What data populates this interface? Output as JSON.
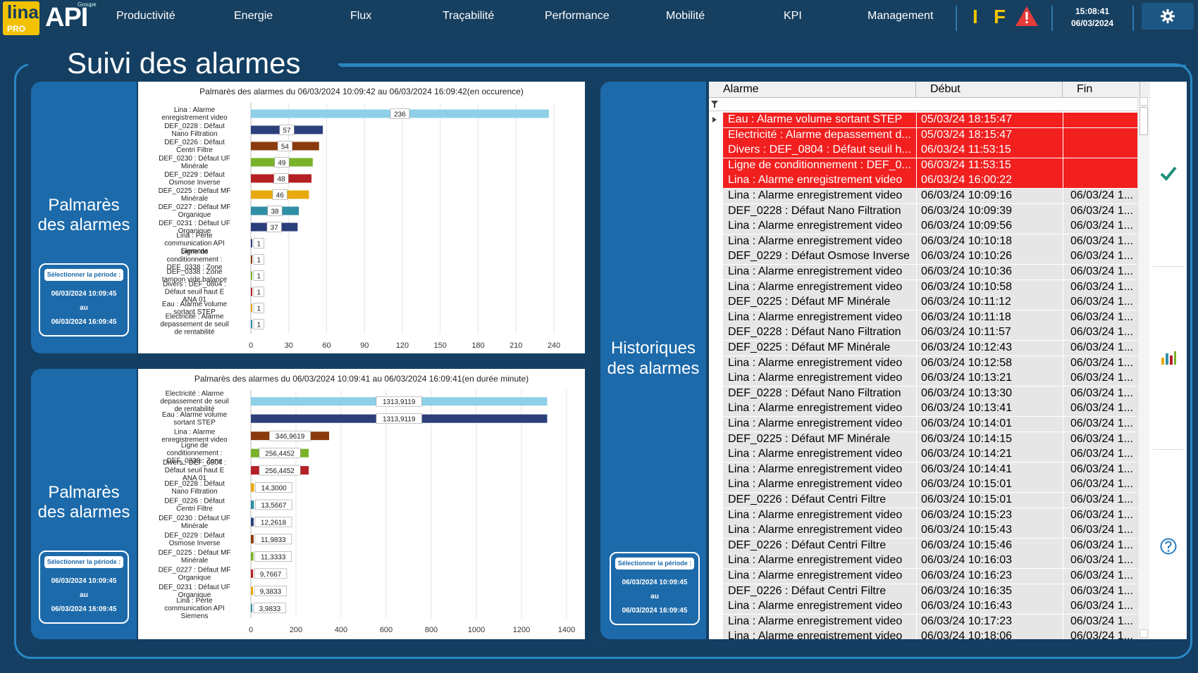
{
  "brand": {
    "lina": "lina",
    "pro": "PRO",
    "groupe": "Groupe",
    "api": "API"
  },
  "nav": [
    "Productivité",
    "Energie",
    "Flux",
    "Traçabilité",
    "Performance",
    "Mobilité",
    "KPI",
    "Management"
  ],
  "status": {
    "i": "I",
    "f": "F"
  },
  "clock": {
    "time": "15:08:41",
    "date": "06/03/2024"
  },
  "page_title": "Suivi des alarmes",
  "panels": {
    "top_label_1": "Palmarès",
    "top_label_2": "des alarmes",
    "bottom_label_1": "Palmarès",
    "bottom_label_2": "des alarmes",
    "hist_label_1": "Historiques",
    "hist_label_2": "des alarmes"
  },
  "period_top": {
    "btn": "Sélectionner la période :",
    "from": "06/03/2024 10:09:45",
    "au": "au",
    "to": "06/03/2024 16:09:45"
  },
  "period_bottom": {
    "btn": "Sélectionner la période :",
    "from": "06/03/2024 10:09:45",
    "au": "au",
    "to": "06/03/2024 16:09:45"
  },
  "period_hist": {
    "btn": "Sélectionner la période :",
    "from": "06/03/2024 10:09:45",
    "au": "au",
    "to": "06/03/2024 16:09:45"
  },
  "chart_data": [
    {
      "type": "bar",
      "title": "Palmarès des alarmes du 06/03/2024 10:09:42 au 06/03/2024 16:09:42(en occurence)",
      "categories": [
        "Lina : Alarme enregistrement video",
        "DEF_0228 : Défaut Nano Filtration",
        "DEF_0226 : Défaut Centri Filtre",
        "DEF_0230 : Défaut UF Minérale",
        "DEF_0229 : Défaut Osmose Inverse",
        "DEF_0225 : Défaut MF Minérale",
        "DEF_0227 : Défaut MF Organique",
        "DEF_0231 : Défaut UF Organique",
        "Lina : Perte communication API Siemens",
        "Ligne de conditionnement : DEF_0338 : Zone tampon vide balance",
        "DEF_0338 : Zone tampon vide balance",
        "Divers : DEF_0804 : Défaut seuil haut E ANA 01",
        "Eau : Alarme volume sortant STEP",
        "Electricité : Alarme depassement de seuil de rentabilité"
      ],
      "values": [
        236,
        57,
        54,
        49,
        48,
        46,
        38,
        37,
        1,
        1,
        1,
        1,
        1,
        1
      ],
      "value_labels": [
        "236",
        "57",
        "54",
        "49",
        "48",
        "46",
        "38",
        "37",
        "1",
        "1",
        "1",
        "1",
        "1",
        "1"
      ],
      "colors": [
        "#8ed0e8",
        "#2b3f7a",
        "#8b3a0e",
        "#79b32a",
        "#b52025",
        "#e8a90e",
        "#2f8fa6",
        "#2b3f7a",
        "#2b3f7a",
        "#8b3a0e",
        "#79b32a",
        "#b52025",
        "#e8a90e",
        "#2f8fa6"
      ],
      "ticks": [
        "0",
        "30",
        "60",
        "90",
        "120",
        "150",
        "180",
        "210",
        "240"
      ],
      "xlim": [
        0,
        240
      ]
    },
    {
      "type": "bar",
      "title": "Palmarès des alarmes du 06/03/2024 10:09:41 au 06/03/2024 16:09:41(en durée minute)",
      "categories": [
        "Electricité : Alarme depassement de seuil de rentabilité",
        "Eau : Alarme volume sortant STEP",
        "Lina : Alarme enregistrement video",
        "Ligne de conditionnement : DEF_0338 : Zone tampon vide balance",
        "Divers : DEF_0804 : Défaut seuil haut E ANA 01",
        "DEF_0228 : Défaut Nano Filtration",
        "DEF_0226 : Défaut Centri Filtre",
        "DEF_0230 : Défaut UF Minérale",
        "DEF_0229 : Défaut Osmose Inverse",
        "DEF_0225 : Défaut MF Minérale",
        "DEF_0227 : Défaut MF Organique",
        "DEF_0231 : Défaut UF Organique",
        "Lina : Perte communication API Siemens"
      ],
      "values": [
        1313.9119,
        1313.9119,
        346.9619,
        256.4452,
        256.4452,
        14.3,
        13.5667,
        12.2618,
        11.9833,
        11.3333,
        9.7667,
        9.3833,
        3.9833
      ],
      "value_labels": [
        "1313,9119",
        "1313,9119",
        "346,9619",
        "256,4452",
        "256,4452",
        "14,3000",
        "13,5667",
        "12,2618",
        "11,9833",
        "11,3333",
        "9,7667",
        "9,3833",
        "3,9833"
      ],
      "colors": [
        "#8ed0e8",
        "#2b3f7a",
        "#8b3a0e",
        "#79b32a",
        "#b52025",
        "#e8a90e",
        "#2f8fa6",
        "#2b3f7a",
        "#8b3a0e",
        "#79b32a",
        "#b52025",
        "#e8a90e",
        "#2f8fa6"
      ],
      "ticks": [
        "0",
        "200",
        "400",
        "600",
        "800",
        "1000",
        "1200",
        "1400"
      ],
      "xlim": [
        0,
        1400
      ]
    }
  ],
  "table": {
    "headers": [
      "Alarme",
      "Début",
      "Fin"
    ],
    "rows": [
      [
        "Eau : Alarme volume sortant STEP",
        "05/03/24 18:15:47",
        "",
        "red"
      ],
      [
        "Electricité : Alarme depassement d...",
        "05/03/24 18:15:47",
        "",
        "red"
      ],
      [
        "Divers : DEF_0804 : Défaut seuil h...",
        "06/03/24 11:53:15",
        "",
        "red"
      ],
      [
        "Ligne de conditionnement : DEF_0...",
        "06/03/24 11:53:15",
        "",
        "red"
      ],
      [
        "Lina : Alarme enregistrement video",
        "06/03/24 16:00:22",
        "",
        "red"
      ],
      [
        "Lina : Alarme enregistrement video",
        "06/03/24 10:09:16",
        "06/03/24 1...",
        "gray"
      ],
      [
        "DEF_0228 : Défaut Nano Filtration",
        "06/03/24 10:09:39",
        "06/03/24 1...",
        "gray"
      ],
      [
        "Lina : Alarme enregistrement video",
        "06/03/24 10:09:56",
        "06/03/24 1...",
        "gray"
      ],
      [
        "Lina : Alarme enregistrement video",
        "06/03/24 10:10:18",
        "06/03/24 1...",
        "gray"
      ],
      [
        "DEF_0229 : Défaut Osmose Inverse",
        "06/03/24 10:10:26",
        "06/03/24 1...",
        "gray"
      ],
      [
        "Lina : Alarme enregistrement video",
        "06/03/24 10:10:36",
        "06/03/24 1...",
        "gray"
      ],
      [
        "Lina : Alarme enregistrement video",
        "06/03/24 10:10:58",
        "06/03/24 1...",
        "gray"
      ],
      [
        "DEF_0225 : Défaut MF Minérale",
        "06/03/24 10:11:12",
        "06/03/24 1...",
        "gray"
      ],
      [
        "Lina : Alarme enregistrement video",
        "06/03/24 10:11:18",
        "06/03/24 1...",
        "gray"
      ],
      [
        "DEF_0228 : Défaut Nano Filtration",
        "06/03/24 10:11:57",
        "06/03/24 1...",
        "gray"
      ],
      [
        "DEF_0225 : Défaut MF Minérale",
        "06/03/24 10:12:43",
        "06/03/24 1...",
        "gray"
      ],
      [
        "Lina : Alarme enregistrement video",
        "06/03/24 10:12:58",
        "06/03/24 1...",
        "gray"
      ],
      [
        "Lina : Alarme enregistrement video",
        "06/03/24 10:13:21",
        "06/03/24 1...",
        "gray"
      ],
      [
        "DEF_0228 : Défaut Nano Filtration",
        "06/03/24 10:13:30",
        "06/03/24 1...",
        "gray"
      ],
      [
        "Lina : Alarme enregistrement video",
        "06/03/24 10:13:41",
        "06/03/24 1...",
        "gray"
      ],
      [
        "Lina : Alarme enregistrement video",
        "06/03/24 10:14:01",
        "06/03/24 1...",
        "gray"
      ],
      [
        "DEF_0225 : Défaut MF Minérale",
        "06/03/24 10:14:15",
        "06/03/24 1...",
        "gray"
      ],
      [
        "Lina : Alarme enregistrement video",
        "06/03/24 10:14:21",
        "06/03/24 1...",
        "gray"
      ],
      [
        "Lina : Alarme enregistrement video",
        "06/03/24 10:14:41",
        "06/03/24 1...",
        "gray"
      ],
      [
        "Lina : Alarme enregistrement video",
        "06/03/24 10:15:01",
        "06/03/24 1...",
        "gray"
      ],
      [
        "DEF_0226 : Défaut Centri Filtre",
        "06/03/24 10:15:01",
        "06/03/24 1...",
        "gray"
      ],
      [
        "Lina : Alarme enregistrement video",
        "06/03/24 10:15:23",
        "06/03/24 1...",
        "gray"
      ],
      [
        "Lina : Alarme enregistrement video",
        "06/03/24 10:15:43",
        "06/03/24 1...",
        "gray"
      ],
      [
        "DEF_0226 : Défaut Centri Filtre",
        "06/03/24 10:15:46",
        "06/03/24 1...",
        "gray"
      ],
      [
        "Lina : Alarme enregistrement video",
        "06/03/24 10:16:03",
        "06/03/24 1...",
        "gray"
      ],
      [
        "Lina : Alarme enregistrement video",
        "06/03/24 10:16:23",
        "06/03/24 1...",
        "gray"
      ],
      [
        "DEF_0226 : Défaut Centri Filtre",
        "06/03/24 10:16:35",
        "06/03/24 1...",
        "gray"
      ],
      [
        "Lina : Alarme enregistrement video",
        "06/03/24 10:16:43",
        "06/03/24 1...",
        "gray"
      ],
      [
        "Lina : Alarme enregistrement video",
        "06/03/24 10:17:23",
        "06/03/24 1...",
        "gray"
      ],
      [
        "Lina : Alarme enregistrement video",
        "06/03/24 10:18:06",
        "06/03/24 1...",
        "gray"
      ]
    ]
  },
  "colors": {
    "red_row": "#f21f1f",
    "gray_row": "#e6e6e6",
    "panel_blue": "#1c6aaa",
    "background": "#143f62",
    "accent": "#f5c400"
  }
}
